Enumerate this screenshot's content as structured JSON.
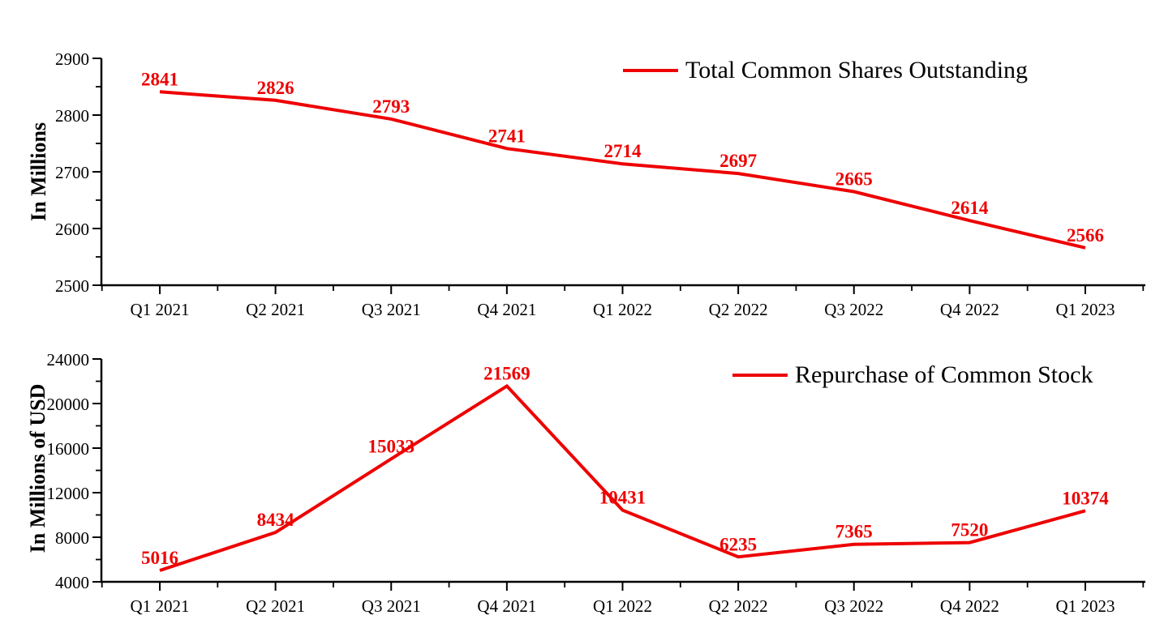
{
  "figure": {
    "background": "#ffffff",
    "axis_color": "#000000",
    "tick_label_color": "#000000"
  },
  "chart_data": [
    {
      "type": "line",
      "title": "",
      "legend": "Total Common Shares Outstanding",
      "ylabel": "In Millions",
      "xlabel": "",
      "legend_position": "top-right",
      "grid": false,
      "line_color": "#ee0000",
      "data_label_color": "#ee0000",
      "categories": [
        "Q1 2021",
        "Q2 2021",
        "Q3 2021",
        "Q4 2021",
        "Q1 2022",
        "Q2 2022",
        "Q3 2022",
        "Q4 2022",
        "Q1 2023"
      ],
      "values": [
        2841,
        2826,
        2793,
        2741,
        2714,
        2697,
        2665,
        2614,
        2566
      ],
      "ylim": [
        2500,
        2900
      ],
      "ytick_major": [
        2500,
        2600,
        2700,
        2800,
        2900
      ],
      "ytick_minor_step": 50
    },
    {
      "type": "line",
      "title": "",
      "legend": "Repurchase of Common Stock",
      "ylabel": "In Millions of USD",
      "xlabel": "",
      "legend_position": "top-right",
      "grid": false,
      "line_color": "#ee0000",
      "data_label_color": "#ee0000",
      "categories": [
        "Q1 2021",
        "Q2 2021",
        "Q3 2021",
        "Q4 2021",
        "Q1 2022",
        "Q2 2022",
        "Q3 2022",
        "Q4 2022",
        "Q1 2023"
      ],
      "values": [
        5016,
        8434,
        15033,
        21569,
        10431,
        6235,
        7365,
        7520,
        10374
      ],
      "ylim": [
        4000,
        24000
      ],
      "ytick_major": [
        4000,
        8000,
        12000,
        16000,
        20000,
        24000
      ],
      "ytick_minor_step": 2000
    }
  ]
}
